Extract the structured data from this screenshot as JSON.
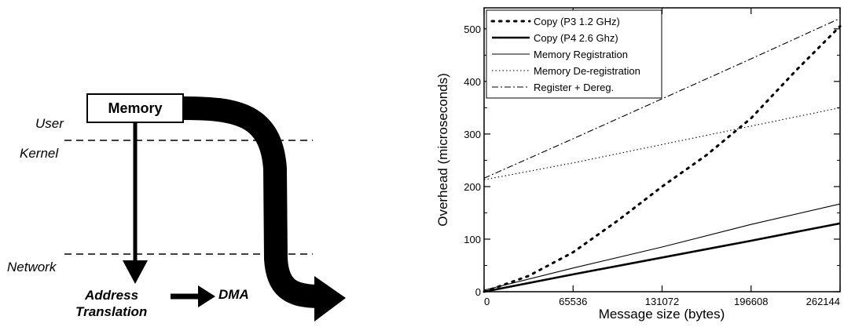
{
  "diagram": {
    "box_label": "Memory",
    "user_label": "User",
    "kernel_label": "Kernel",
    "network_label": "Network",
    "address_label": "Address",
    "translation_label": "Translation",
    "dma_label": "DMA"
  },
  "chart_data": {
    "type": "line",
    "xlabel": "Message size (bytes)",
    "ylabel": "Overhead (microseconds)",
    "xlim": [
      0,
      262144
    ],
    "ylim": [
      0,
      540
    ],
    "xticks": [
      0,
      65536,
      131072,
      196608,
      262144
    ],
    "yticks": [
      0,
      100,
      200,
      300,
      400,
      500
    ],
    "grid": false,
    "legend_position": "top-left",
    "series": [
      {
        "name": "Copy (P3 1.2 GHz)",
        "style": "dotted-thick",
        "x": [
          0,
          32768,
          65536,
          98304,
          131072,
          163840,
          196608,
          229376,
          262144
        ],
        "y": [
          0,
          30,
          75,
          135,
          200,
          260,
          330,
          420,
          505
        ]
      },
      {
        "name": "Copy (P4 2.6 Ghz)",
        "style": "solid-thick",
        "x": [
          0,
          65536,
          131072,
          196608,
          262144
        ],
        "y": [
          0,
          33,
          65,
          97,
          130
        ]
      },
      {
        "name": "Memory Registration",
        "style": "solid-thin",
        "x": [
          0,
          65536,
          131072,
          196608,
          262144
        ],
        "y": [
          3,
          45,
          85,
          128,
          167
        ]
      },
      {
        "name": "Memory De-registration",
        "style": "dotted-thin",
        "x": [
          0,
          65536,
          131072,
          196608,
          262144
        ],
        "y": [
          213,
          245,
          280,
          315,
          350
        ]
      },
      {
        "name": "Register + Dereg.",
        "style": "dashdot",
        "x": [
          0,
          65536,
          131072,
          196608,
          262144
        ],
        "y": [
          216,
          291,
          367,
          443,
          520
        ]
      }
    ]
  }
}
